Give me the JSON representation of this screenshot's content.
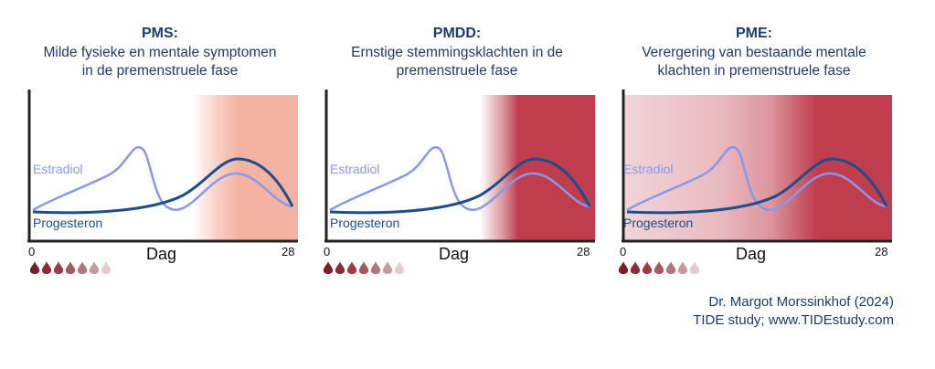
{
  "panels": [
    {
      "title": "PMS:",
      "subtitle_line1": "Milde fysieke en mentale symptomen",
      "subtitle_line2": "in de premenstruele fase",
      "shading": "mild-luteal",
      "shade_color": "#f4b3a2"
    },
    {
      "title": "PMDD:",
      "subtitle_line1": "Ernstige stemmingsklachten in de",
      "subtitle_line2": "premenstruele fase",
      "shading": "severe-luteal",
      "shade_color": "#c03d4e"
    },
    {
      "title": "PME:",
      "subtitle_line1": "Verergering van bestaande mentale",
      "subtitle_line2": "klachten in premenstruele fase",
      "shading": "baseline-plus-luteal",
      "shade_color": "#c03d4e"
    }
  ],
  "axis": {
    "x_start": "0",
    "x_end": "28",
    "x_label": "Dag"
  },
  "series_labels": {
    "estradiol": "Estradiol",
    "progesteron": "Progesteron"
  },
  "colors": {
    "title": "#1f3a6e",
    "estradiol": "#8a98ea",
    "progesteron": "#1e4d8c",
    "axis": "#222222"
  },
  "drops": [
    "#7a1f25",
    "#8e2b33",
    "#a03a44",
    "#a85560",
    "#b5737d",
    "#c79aa1",
    "#e2cdd0"
  ],
  "credit": {
    "line1": "Dr. Margot Morssinkhof (2024)",
    "line2": "TIDE study; www.TIDEstudy.com"
  }
}
